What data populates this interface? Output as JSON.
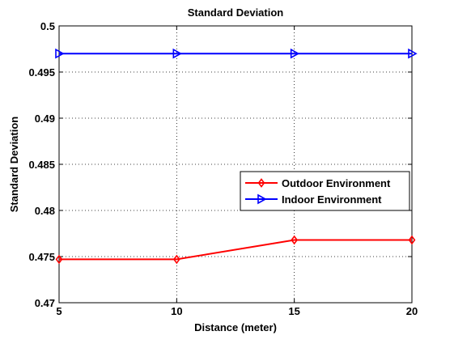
{
  "chart_data": {
    "type": "line",
    "title": "Standard Deviation",
    "xlabel": "Distance (meter)",
    "ylabel": "Standard Deviation",
    "x": [
      5,
      10,
      15,
      20
    ],
    "xlim": [
      5,
      20
    ],
    "ylim": [
      0.47,
      0.5
    ],
    "xticks": [
      5,
      10,
      15,
      20
    ],
    "xtick_labels": [
      "5",
      "10",
      "15",
      "20"
    ],
    "yticks": [
      0.47,
      0.475,
      0.48,
      0.485,
      0.49,
      0.495,
      0.5
    ],
    "ytick_labels": [
      "0.47",
      "0.475",
      "0.48",
      "0.485",
      "0.49",
      "0.495",
      "0.5"
    ],
    "grid": true,
    "legend_position": "right",
    "series": [
      {
        "name": "Outdoor Environment",
        "values": [
          0.4747,
          0.4747,
          0.4768,
          0.4768
        ],
        "color": "#ff0000",
        "marker": "diamond"
      },
      {
        "name": "Indoor Environment",
        "values": [
          0.497,
          0.497,
          0.497,
          0.497
        ],
        "color": "#0000ff",
        "marker": "triangle-right"
      }
    ]
  }
}
